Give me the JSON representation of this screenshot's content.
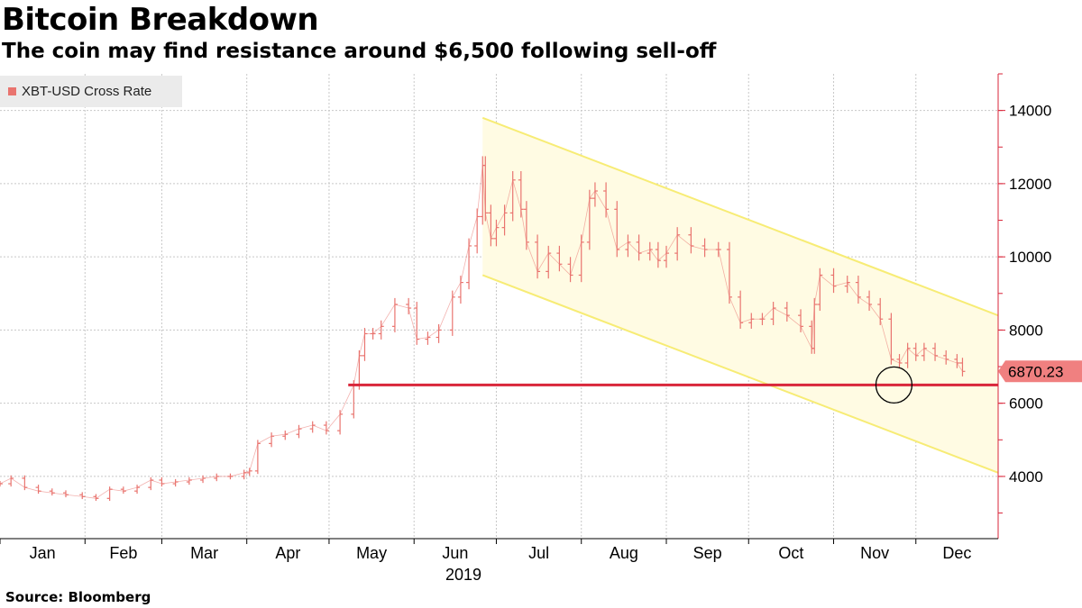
{
  "title": "Bitcoin Breakdown",
  "subtitle": "The coin may find resistance around $6,500 following sell-off",
  "source": "Source: Bloomberg",
  "legend": {
    "label": "XBT-USD Cross Rate",
    "color": "#e9746f"
  },
  "colors": {
    "price_bars": "#e9746f",
    "channel_line": "#f7ec75",
    "channel_fill": "#fffbe3",
    "support_line": "#d9263a",
    "last_value_bg": "#f08080",
    "grid": "#c8c8c8",
    "axis": "#d9263a"
  },
  "chart_data": {
    "type": "line",
    "style": "ohlc-bars",
    "series": [
      {
        "name": "XBT-USD Cross Rate",
        "x": [
          "2019-01-01",
          "2019-01-05",
          "2019-01-10",
          "2019-01-15",
          "2019-01-20",
          "2019-01-25",
          "2019-01-31",
          "2019-02-05",
          "2019-02-10",
          "2019-02-15",
          "2019-02-20",
          "2019-02-25",
          "2019-03-01",
          "2019-03-06",
          "2019-03-11",
          "2019-03-16",
          "2019-03-21",
          "2019-03-26",
          "2019-03-31",
          "2019-04-02",
          "2019-04-05",
          "2019-04-10",
          "2019-04-15",
          "2019-04-20",
          "2019-04-25",
          "2019-04-30",
          "2019-05-05",
          "2019-05-10",
          "2019-05-12",
          "2019-05-14",
          "2019-05-17",
          "2019-05-20",
          "2019-05-25",
          "2019-05-30",
          "2019-06-02",
          "2019-06-06",
          "2019-06-10",
          "2019-06-15",
          "2019-06-18",
          "2019-06-21",
          "2019-06-24",
          "2019-06-26",
          "2019-06-27",
          "2019-06-29",
          "2019-07-01",
          "2019-07-04",
          "2019-07-07",
          "2019-07-10",
          "2019-07-12",
          "2019-07-16",
          "2019-07-20",
          "2019-07-24",
          "2019-07-28",
          "2019-08-01",
          "2019-08-04",
          "2019-08-06",
          "2019-08-10",
          "2019-08-14",
          "2019-08-18",
          "2019-08-22",
          "2019-08-26",
          "2019-08-29",
          "2019-09-01",
          "2019-09-05",
          "2019-09-10",
          "2019-09-15",
          "2019-09-20",
          "2019-09-24",
          "2019-09-28",
          "2019-10-02",
          "2019-10-06",
          "2019-10-10",
          "2019-10-15",
          "2019-10-20",
          "2019-10-24",
          "2019-10-25",
          "2019-10-27",
          "2019-11-01",
          "2019-11-06",
          "2019-11-10",
          "2019-11-14",
          "2019-11-18",
          "2019-11-22",
          "2019-11-25",
          "2019-11-28",
          "2019-12-01",
          "2019-12-04",
          "2019-12-08",
          "2019-12-12",
          "2019-12-16",
          "2019-12-18"
        ],
        "y": [
          3800,
          3950,
          3700,
          3600,
          3550,
          3500,
          3450,
          3400,
          3650,
          3600,
          3700,
          3900,
          3800,
          3850,
          3900,
          3950,
          4000,
          4000,
          4100,
          4150,
          4900,
          5100,
          5150,
          5300,
          5400,
          5250,
          5700,
          6500,
          7300,
          7900,
          7900,
          8100,
          8700,
          8600,
          7750,
          7800,
          8000,
          8900,
          9300,
          10300,
          11100,
          12500,
          11200,
          10500,
          10800,
          11200,
          12100,
          11300,
          10400,
          9600,
          10100,
          9800,
          9500,
          10400,
          11600,
          11800,
          11300,
          10200,
          10400,
          10100,
          10200,
          9900,
          10100,
          10600,
          10300,
          10200,
          10200,
          8900,
          8200,
          8300,
          8300,
          8600,
          8400,
          8100,
          7500,
          8700,
          9500,
          9200,
          9300,
          8900,
          8700,
          8300,
          7200,
          7100,
          7500,
          7300,
          7500,
          7300,
          7200,
          7100,
          6870.23
        ]
      }
    ],
    "annotations": {
      "last_value_label": "6870.23",
      "support_level": 6500,
      "channel_upper": {
        "start": [
          "2019-06-26",
          13800
        ],
        "end": [
          "2019-12-31",
          8400
        ]
      },
      "channel_lower": {
        "start": [
          "2019-06-26",
          9500
        ],
        "end": [
          "2019-12-31",
          4100
        ]
      },
      "circle_marker": {
        "x": "2019-11-23",
        "y": 6500
      }
    },
    "x_axis": {
      "tick_labels": [
        "Jan",
        "Feb",
        "Mar",
        "Apr",
        "May",
        "Jun",
        "Jul",
        "Aug",
        "Sep",
        "Oct",
        "Nov",
        "Dec"
      ],
      "year_label": "2019",
      "range": [
        "2019-01-01",
        "2019-12-31"
      ]
    },
    "y_axis": {
      "tick_values": [
        4000,
        6000,
        8000,
        10000,
        12000,
        14000
      ],
      "tick_labels": [
        "4000",
        "6000",
        "8000",
        "10000",
        "12000",
        "14000"
      ],
      "range": [
        2300,
        15000
      ],
      "position": "right"
    },
    "grid": true,
    "legend_position": "top-left"
  }
}
